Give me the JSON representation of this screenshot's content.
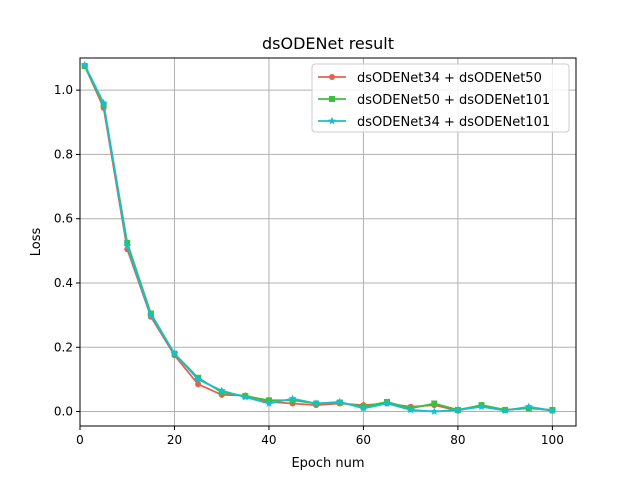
{
  "chart_data": {
    "type": "line",
    "title": "dsODENet result",
    "xlabel": "Epoch num",
    "ylabel": "Loss",
    "xlim": [
      0,
      105
    ],
    "ylim": [
      -0.045,
      1.1
    ],
    "xticks": [
      0,
      20,
      40,
      60,
      80,
      100
    ],
    "yticks": [
      0.0,
      0.2,
      0.4,
      0.6,
      0.8,
      1.0
    ],
    "grid": true,
    "legend_position": "top-right",
    "x": [
      1,
      5,
      10,
      15,
      20,
      25,
      30,
      35,
      40,
      45,
      50,
      55,
      60,
      65,
      70,
      75,
      80,
      85,
      90,
      95,
      100
    ],
    "series": [
      {
        "name": "dsODENet34 + dsODENet50",
        "color": "#e8604c",
        "marker": "circle",
        "values": [
          1.075,
          0.945,
          0.505,
          0.295,
          0.175,
          0.085,
          0.052,
          0.05,
          0.03,
          0.025,
          0.02,
          0.025,
          0.02,
          0.025,
          0.015,
          0.02,
          0.003,
          0.02,
          0.005,
          0.012,
          0.003
        ]
      },
      {
        "name": "dsODENet50 + dsODENet101",
        "color": "#3cbf3c",
        "marker": "square",
        "values": [
          1.075,
          0.955,
          0.525,
          0.305,
          0.18,
          0.105,
          0.06,
          0.048,
          0.035,
          0.035,
          0.025,
          0.028,
          0.015,
          0.03,
          0.01,
          0.025,
          0.005,
          0.02,
          0.005,
          0.01,
          0.005
        ]
      },
      {
        "name": "dsODENet34 + dsODENet101",
        "color": "#17becf",
        "marker": "star",
        "values": [
          1.078,
          0.96,
          0.515,
          0.3,
          0.18,
          0.1,
          0.065,
          0.045,
          0.025,
          0.04,
          0.025,
          0.03,
          0.01,
          0.025,
          0.005,
          0.0,
          0.005,
          0.015,
          0.003,
          0.015,
          0.003
        ]
      }
    ]
  }
}
